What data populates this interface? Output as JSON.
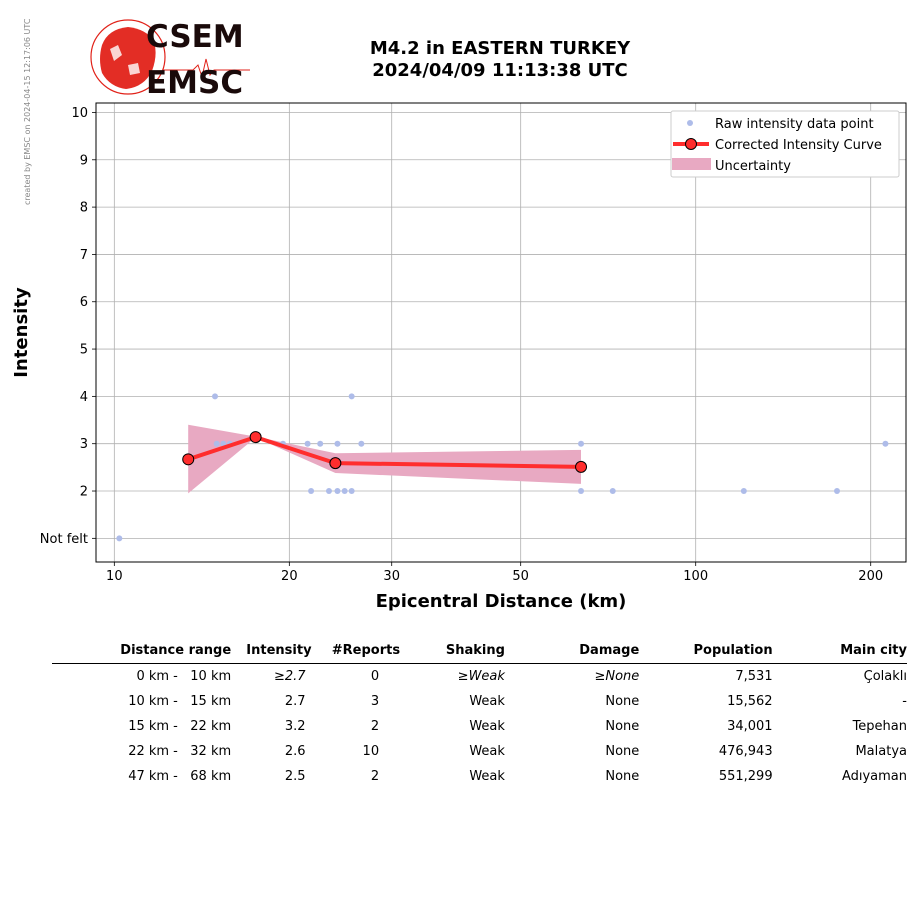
{
  "created_note": "created by EMSC on 2024-04-15 12:17:06 UTC",
  "logo": {
    "line1": "CSEM",
    "line2": "EMSC"
  },
  "title": {
    "line1": "M4.2 in EASTERN TURKEY",
    "line2": "2024/04/09 11:13:38 UTC"
  },
  "colors": {
    "raw": "#aebce9",
    "curve": "#ff2d2d",
    "uncertainty": "#e8a9c2",
    "logo": "#e12219"
  },
  "chart_data": {
    "type": "scatter",
    "xlabel": "Epicentral Distance (km)",
    "ylabel": "Intensity",
    "xscale": "log",
    "xlim": [
      9.3,
      230
    ],
    "ylim": [
      0.5,
      10.2
    ],
    "xticks": [
      10,
      20,
      30,
      50,
      100,
      200
    ],
    "yticks": [
      {
        "value": 1,
        "label": "Not felt"
      },
      {
        "value": 2,
        "label": "2"
      },
      {
        "value": 3,
        "label": "3"
      },
      {
        "value": 4,
        "label": "4"
      },
      {
        "value": 5,
        "label": "5"
      },
      {
        "value": 6,
        "label": "6"
      },
      {
        "value": 7,
        "label": "7"
      },
      {
        "value": 8,
        "label": "8"
      },
      {
        "value": 9,
        "label": "9"
      },
      {
        "value": 10,
        "label": "10"
      }
    ],
    "grid": true,
    "legend_position": "top-right",
    "legend": [
      "Raw intensity data point",
      "Corrected Intensity Curve",
      "Uncertainty"
    ],
    "raw_points": [
      [
        10.2,
        1
      ],
      [
        14.9,
        4
      ],
      [
        15.0,
        3
      ],
      [
        15.4,
        3
      ],
      [
        15.8,
        3
      ],
      [
        19.5,
        3
      ],
      [
        21.5,
        3
      ],
      [
        22.6,
        3
      ],
      [
        24.2,
        3
      ],
      [
        26.6,
        3
      ],
      [
        21.8,
        2
      ],
      [
        23.4,
        2
      ],
      [
        24.2,
        2
      ],
      [
        24.9,
        2
      ],
      [
        25.6,
        2
      ],
      [
        25.6,
        4
      ],
      [
        63.5,
        3
      ],
      [
        63.5,
        2
      ],
      [
        72,
        2
      ],
      [
        121,
        2
      ],
      [
        175,
        2
      ],
      [
        212,
        3
      ]
    ],
    "curve": {
      "x": [
        13.4,
        17.5,
        24.0,
        63.5
      ],
      "y": [
        2.67,
        3.14,
        2.59,
        2.51
      ]
    },
    "uncertainty": {
      "x": [
        13.4,
        17.5,
        24.0,
        63.5
      ],
      "upper": [
        3.4,
        3.15,
        2.8,
        2.87
      ],
      "lower": [
        1.95,
        3.13,
        2.38,
        2.15
      ]
    }
  },
  "table": {
    "headers": [
      "Distance range",
      "Intensity",
      "#Reports",
      "Shaking",
      "Damage",
      "Population",
      "Main city"
    ],
    "rows": [
      {
        "distance": "0 km -   10 km",
        "intensity": "≥2.7",
        "reports": "0",
        "shaking": "≥Weak",
        "damage": "≥None",
        "population": "7,531",
        "city": "Çolaklı"
      },
      {
        "distance": "10 km -   15 km",
        "intensity": "2.7",
        "reports": "3",
        "shaking": "Weak",
        "damage": "None",
        "population": "15,562",
        "city": "-"
      },
      {
        "distance": "15 km -   22 km",
        "intensity": "3.2",
        "reports": "2",
        "shaking": "Weak",
        "damage": "None",
        "population": "34,001",
        "city": "Tepehan"
      },
      {
        "distance": "22 km -   32 km",
        "intensity": "2.6",
        "reports": "10",
        "shaking": "Weak",
        "damage": "None",
        "population": "476,943",
        "city": "Malatya"
      },
      {
        "distance": "47 km -   68 km",
        "intensity": "2.5",
        "reports": "2",
        "shaking": "Weak",
        "damage": "None",
        "population": "551,299",
        "city": "Adıyaman"
      }
    ]
  }
}
